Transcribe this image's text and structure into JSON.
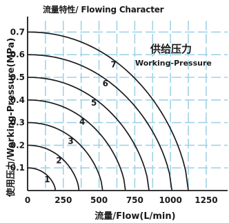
{
  "chart_data": {
    "type": "line",
    "title": "流量特性/ Flowing Character",
    "xlabel": "流量/Flow(L/min)",
    "ylabel": "使用压力/Working-Pressure(MPa)",
    "annotation": {
      "line1": "供给压力",
      "line2": "Working-Pressure"
    },
    "xlim": [
      0,
      1400
    ],
    "ylim": [
      0,
      0.75
    ],
    "xticks": [
      "0",
      "250",
      "500",
      "750",
      "1000",
      "1250"
    ],
    "yticks": [
      "0.1",
      "0.2",
      "0.3",
      "0.4",
      "0.5",
      "0.6",
      "0.7"
    ],
    "grid": true,
    "colors": {
      "curve": "#1a1a1a",
      "grid": "#9fd3e6",
      "axis": "#1a1a1a"
    },
    "series": [
      {
        "name": "1",
        "x": [
          0,
          100,
          160,
          190,
          195
        ],
        "y": [
          0.1,
          0.09,
          0.06,
          0.02,
          0
        ]
      },
      {
        "name": "2",
        "x": [
          0,
          150,
          260,
          335,
          360
        ],
        "y": [
          0.2,
          0.185,
          0.14,
          0.06,
          0
        ]
      },
      {
        "name": "3",
        "x": [
          0,
          230,
          390,
          490,
          525
        ],
        "y": [
          0.3,
          0.28,
          0.21,
          0.1,
          0
        ]
      },
      {
        "name": "4",
        "x": [
          0,
          310,
          520,
          645,
          685
        ],
        "y": [
          0.4,
          0.37,
          0.28,
          0.13,
          0
        ]
      },
      {
        "name": "5",
        "x": [
          0,
          390,
          650,
          800,
          850
        ],
        "y": [
          0.5,
          0.465,
          0.35,
          0.16,
          0
        ]
      },
      {
        "name": "6",
        "x": [
          0,
          460,
          780,
          960,
          1010
        ],
        "y": [
          0.6,
          0.56,
          0.42,
          0.19,
          0
        ]
      },
      {
        "name": "7",
        "x": [
          0,
          530,
          880,
          1070,
          1125
        ],
        "y": [
          0.7,
          0.65,
          0.49,
          0.22,
          0
        ]
      }
    ]
  }
}
